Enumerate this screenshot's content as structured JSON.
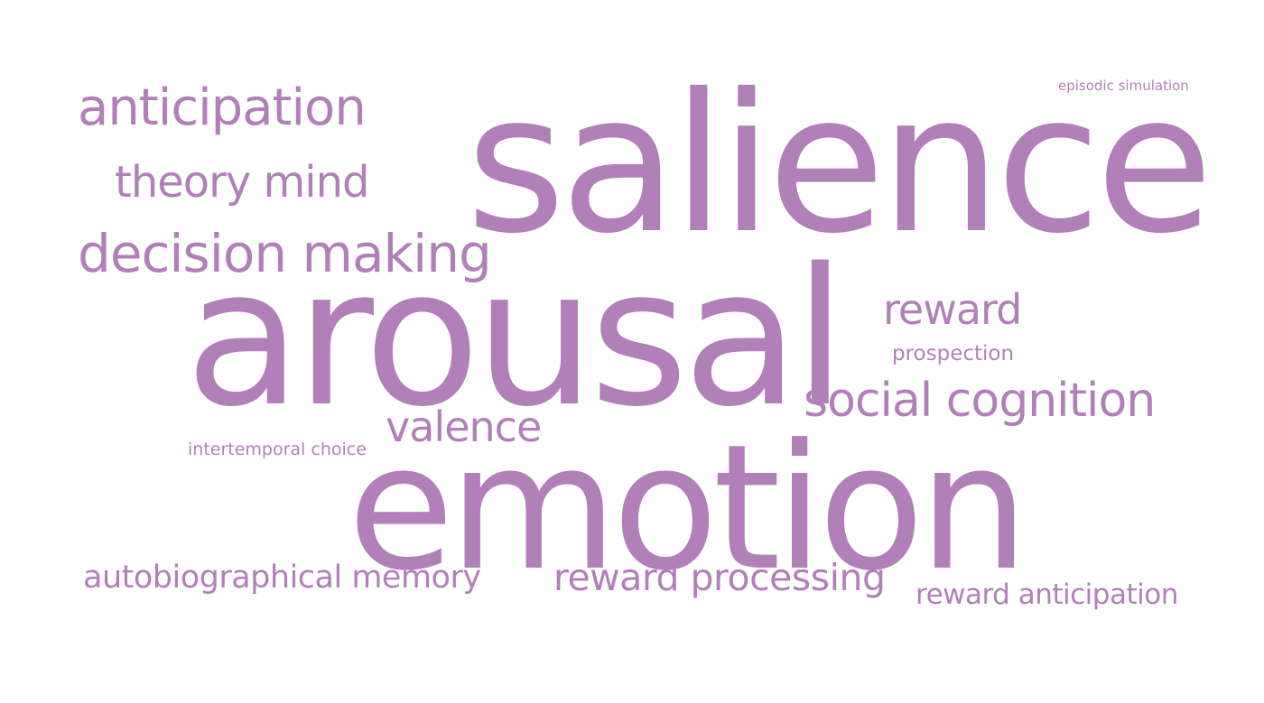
{
  "colors": {
    "word": "#b280b9",
    "background": "#ffffff"
  },
  "words": {
    "salience": "salience",
    "arousal": "arousal",
    "emotion": "emotion",
    "anticipation": "anticipation",
    "theory_mind": "theory mind",
    "decision_making": "decision making",
    "reward": "reward",
    "prospection": "prospection",
    "social_cognition": "social cognition",
    "valence": "valence",
    "intertemporal_choice": "intertemporal choice",
    "episodic_simulation": "episodic simulation",
    "autobiographical_memory": "autobiographical memory",
    "reward_processing": "reward processing",
    "reward_anticipation": "reward anticipation"
  }
}
